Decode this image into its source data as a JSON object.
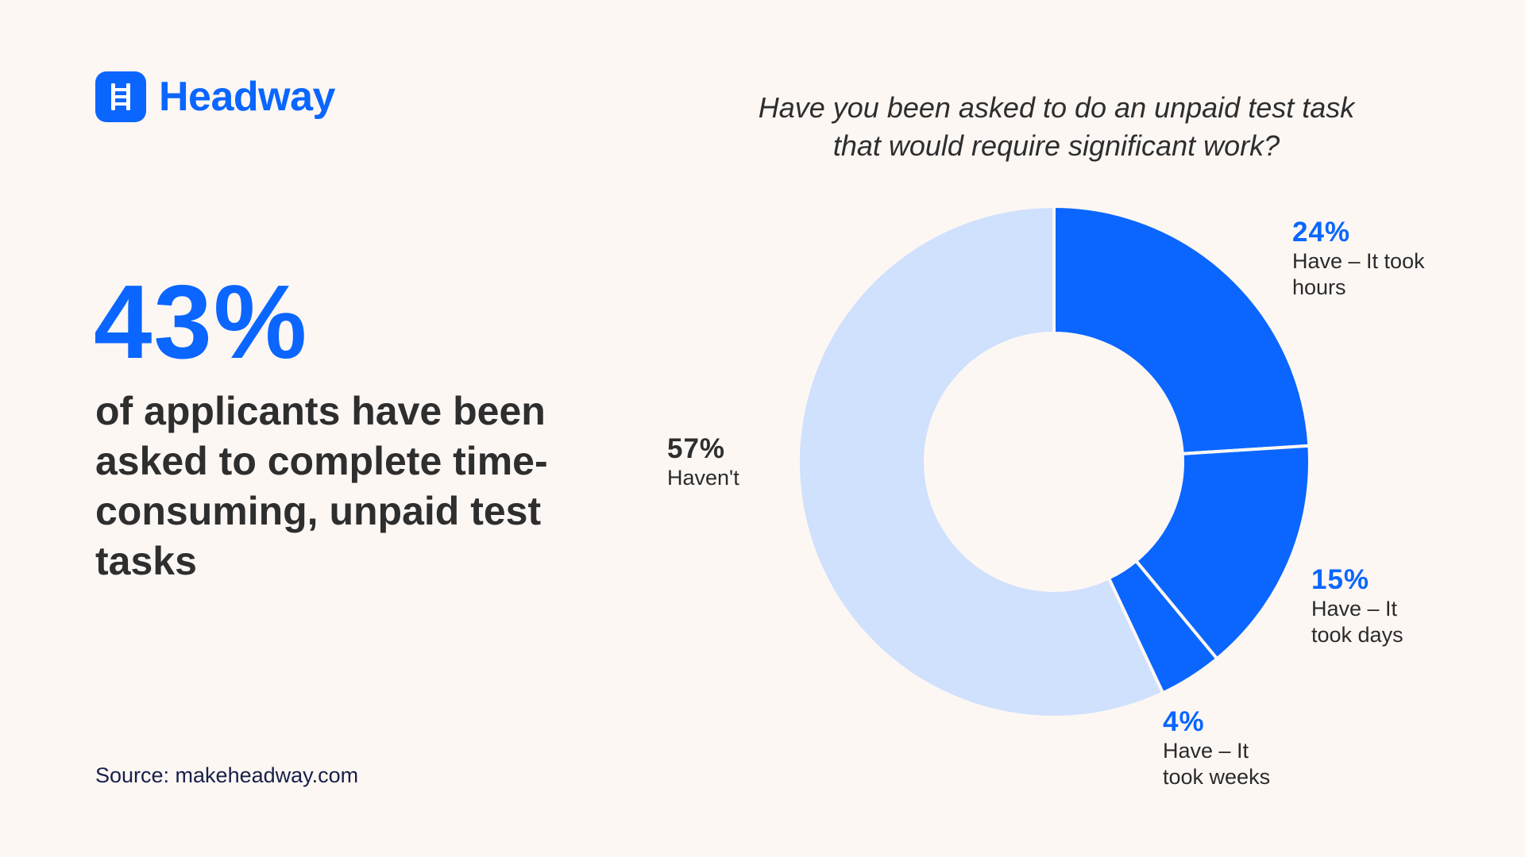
{
  "brand": {
    "name": "Headway",
    "logo_icon": "ladder-icon"
  },
  "headline": {
    "stat": "43%",
    "description": "of applicants have been asked to complete time-consuming, unpaid test tasks"
  },
  "source": "Source: makeheadway.com",
  "colors": {
    "background": "#fdf7f4",
    "accent": "#0a66ff",
    "light": "#cfe1fc",
    "text": "#2e2e2e"
  },
  "chart_data": {
    "type": "pie",
    "title": "Have you been asked to do an unpaid test task that would require significant work?",
    "title_lines": [
      "Have you been asked to do an unpaid test task",
      "that would require significant work?"
    ],
    "donut": true,
    "categories": [
      "Have – It took hours",
      "Have – It took days",
      "Have – It took weeks",
      "Haven't"
    ],
    "values": [
      24,
      15,
      4,
      57
    ],
    "value_labels": [
      "24%",
      "15%",
      "4%",
      "57%"
    ],
    "label_lines": [
      [
        "Have – It took",
        "hours"
      ],
      [
        "Have – It",
        "took days"
      ],
      [
        "Have – It",
        "took weeks"
      ],
      [
        "Haven't"
      ]
    ],
    "colors": [
      "#0a66ff",
      "#0a66ff",
      "#0a66ff",
      "#cfe1fc"
    ],
    "label_colors": [
      "#0a66ff",
      "#0a66ff",
      "#0a66ff",
      "#2e2e2e"
    ]
  }
}
